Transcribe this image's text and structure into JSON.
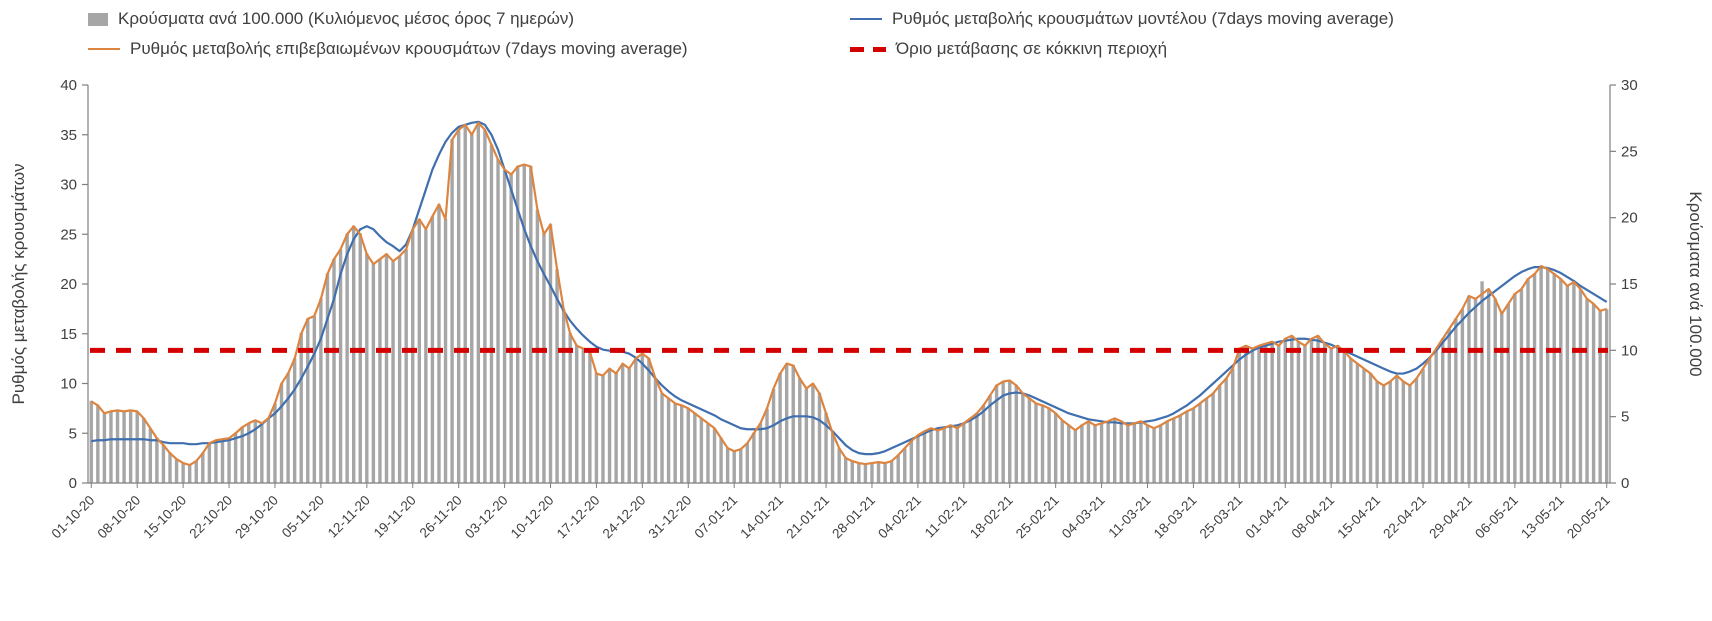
{
  "legend": {
    "items": [
      {
        "label": "Κρούσματα ανά 100.000 (Κυλιόμενος μέσος όρος 7 ημερών)",
        "marker": "bar",
        "color": "#a6a6a6"
      },
      {
        "label": "Ρυθμός μεταβολής κρουσμάτων μοντέλου (7days moving average)",
        "marker": "line",
        "color": "#3f6fae"
      },
      {
        "label": "Ρυθμός μεταβολής επιβεβαιωμένων κρουσμάτων (7days moving average)",
        "marker": "line",
        "color": "#dd8540"
      },
      {
        "label": "Όριο μετάβασης σε κόκκινη περιοχή",
        "marker": "dash",
        "color": "#d40000"
      }
    ]
  },
  "axes": {
    "left_title": "Ρυθμός μεταβολής κρουσμάτων",
    "right_title": "Κρούσματα ανά 100.000",
    "left_ticks": [
      0,
      5,
      10,
      15,
      20,
      25,
      30,
      35,
      40
    ],
    "right_ticks": [
      0,
      5,
      10,
      15,
      20,
      25,
      30
    ]
  },
  "chart_data": {
    "type": "bar",
    "title": "",
    "x_tick_interval_days": 7,
    "x_tick_labels": [
      "01-10-20",
      "08-10-20",
      "15-10-20",
      "22-10-20",
      "29-10-20",
      "05-11-20",
      "12-11-20",
      "19-11-20",
      "26-11-20",
      "03-12-20",
      "10-12-20",
      "17-12-20",
      "24-12-20",
      "31-12-20",
      "07-01-21",
      "14-01-21",
      "21-01-21",
      "28-01-21",
      "04-02-21",
      "11-02-21",
      "18-02-21",
      "25-02-21",
      "04-03-21",
      "11-03-21",
      "18-03-21",
      "25-03-21",
      "01-04-21",
      "08-04-21",
      "15-04-21",
      "22-04-21",
      "29-04-21",
      "06-05-21",
      "13-05-21",
      "20-05-21"
    ],
    "left_axis": {
      "label": "Ρυθμός μεταβολής κρουσμάτων",
      "range": [
        0,
        40
      ]
    },
    "right_axis": {
      "label": "Κρούσματα ανά 100.000",
      "range": [
        0,
        30
      ]
    },
    "series": [
      {
        "name": "Κρούσματα ανά 100.000 (Κυλιόμενος μέσος όρος 7 ημερών)",
        "type": "bar",
        "axis": "right",
        "color": "#a6a6a6",
        "values": [
          6.2,
          5.9,
          5.3,
          5.4,
          5.5,
          5.4,
          5.5,
          5.4,
          4.9,
          4.1,
          3.4,
          2.9,
          2.3,
          1.8,
          1.5,
          1.4,
          1.7,
          2.3,
          3.0,
          3.2,
          3.3,
          3.4,
          3.8,
          4.2,
          4.5,
          4.7,
          4.5,
          4.9,
          6.0,
          7.5,
          8.3,
          9.4,
          11.3,
          12.4,
          12.6,
          13.9,
          15.8,
          16.9,
          17.6,
          18.8,
          19.4,
          18.8,
          17.3,
          16.5,
          16.9,
          17.3,
          16.7,
          17.1,
          17.6,
          19.1,
          19.9,
          19.1,
          20.1,
          21.0,
          19.9,
          25.9,
          26.6,
          27.0,
          26.3,
          27.2,
          26.6,
          25.5,
          24.4,
          23.6,
          23.3,
          23.9,
          24.0,
          23.9,
          20.6,
          18.8,
          19.5,
          16.1,
          13.1,
          11.3,
          10.4,
          10.1,
          9.9,
          8.3,
          8.1,
          8.6,
          8.3,
          9.0,
          8.6,
          9.4,
          9.8,
          9.4,
          7.9,
          6.8,
          6.4,
          6.0,
          5.9,
          5.6,
          5.3,
          4.9,
          4.5,
          4.1,
          3.4,
          2.6,
          2.4,
          2.6,
          3.0,
          3.8,
          4.5,
          5.6,
          7.1,
          8.3,
          9.0,
          8.9,
          7.9,
          7.1,
          7.5,
          6.8,
          5.3,
          3.8,
          2.6,
          1.9,
          1.7,
          1.5,
          1.4,
          1.5,
          1.6,
          1.5,
          1.7,
          2.1,
          2.6,
          3.2,
          3.6,
          3.9,
          4.1,
          4.0,
          4.1,
          4.4,
          4.1,
          4.5,
          4.9,
          5.3,
          5.9,
          6.6,
          7.4,
          7.7,
          7.7,
          7.4,
          6.8,
          6.4,
          6.0,
          5.9,
          5.6,
          5.3,
          4.7,
          4.4,
          4.0,
          4.4,
          4.7,
          4.4,
          4.5,
          4.7,
          4.9,
          4.7,
          4.4,
          4.5,
          4.7,
          4.4,
          4.1,
          4.4,
          4.7,
          4.9,
          5.1,
          5.4,
          5.6,
          6.0,
          6.4,
          6.8,
          7.4,
          7.9,
          8.6,
          10.1,
          10.4,
          10.1,
          10.4,
          10.5,
          10.7,
          10.4,
          10.9,
          11.1,
          10.7,
          10.4,
          10.9,
          11.1,
          10.5,
          10.1,
          10.4,
          9.9,
          9.4,
          9.0,
          8.6,
          8.3,
          7.7,
          7.4,
          7.7,
          8.1,
          7.7,
          7.4,
          7.9,
          8.6,
          9.4,
          10.1,
          10.9,
          11.6,
          12.4,
          13.1,
          14.1,
          13.9,
          15.2,
          14.6,
          13.9,
          12.8,
          13.5,
          14.3,
          14.6,
          15.4,
          15.8,
          16.4,
          16.1,
          15.8,
          15.4,
          14.9,
          15.2,
          14.6,
          13.9,
          13.5,
          13.0,
          13.1
        ]
      },
      {
        "name": "Ρυθμός μεταβολής κρουσμάτων μοντέλου (7days moving average)",
        "type": "line",
        "axis": "left",
        "color": "#3f6fae",
        "values": [
          4.2,
          4.3,
          4.3,
          4.4,
          4.4,
          4.4,
          4.4,
          4.4,
          4.4,
          4.3,
          4.3,
          4.1,
          4.0,
          4.0,
          4.0,
          3.9,
          3.9,
          4.0,
          4.0,
          4.1,
          4.2,
          4.3,
          4.5,
          4.7,
          5.0,
          5.4,
          5.9,
          6.5,
          7.0,
          7.7,
          8.5,
          9.4,
          10.5,
          11.7,
          13.0,
          14.5,
          16.5,
          18.5,
          21.0,
          23.0,
          24.5,
          25.5,
          25.8,
          25.5,
          24.8,
          24.2,
          23.8,
          23.3,
          24.0,
          25.5,
          27.5,
          29.5,
          31.5,
          33.0,
          34.3,
          35.2,
          35.8,
          36.0,
          36.2,
          36.3,
          36.0,
          35.0,
          33.5,
          31.5,
          29.5,
          27.5,
          25.5,
          23.8,
          22.3,
          21.0,
          19.8,
          18.5,
          17.3,
          16.3,
          15.5,
          14.8,
          14.2,
          13.7,
          13.4,
          13.3,
          13.2,
          13.2,
          13.0,
          12.6,
          12.0,
          11.3,
          10.5,
          9.8,
          9.2,
          8.7,
          8.3,
          8.0,
          7.7,
          7.4,
          7.1,
          6.8,
          6.4,
          6.1,
          5.8,
          5.5,
          5.4,
          5.4,
          5.4,
          5.5,
          5.8,
          6.2,
          6.5,
          6.7,
          6.7,
          6.7,
          6.6,
          6.3,
          5.8,
          5.2,
          4.5,
          3.8,
          3.3,
          3.0,
          2.9,
          2.9,
          3.0,
          3.2,
          3.5,
          3.8,
          4.1,
          4.4,
          4.7,
          5.0,
          5.3,
          5.5,
          5.6,
          5.7,
          5.8,
          6.0,
          6.3,
          6.7,
          7.2,
          7.8,
          8.3,
          8.8,
          9.0,
          9.1,
          9.0,
          8.8,
          8.5,
          8.2,
          7.9,
          7.6,
          7.3,
          7.0,
          6.8,
          6.6,
          6.4,
          6.3,
          6.2,
          6.1,
          6.1,
          6.0,
          6.0,
          6.0,
          6.1,
          6.2,
          6.3,
          6.5,
          6.7,
          7.0,
          7.4,
          7.8,
          8.3,
          8.8,
          9.4,
          10.0,
          10.6,
          11.2,
          11.8,
          12.4,
          12.9,
          13.3,
          13.6,
          13.8,
          14.0,
          14.2,
          14.3,
          14.4,
          14.5,
          14.5,
          14.4,
          14.3,
          14.1,
          13.9,
          13.6,
          13.3,
          13.0,
          12.7,
          12.4,
          12.1,
          11.8,
          11.5,
          11.2,
          11.0,
          11.0,
          11.2,
          11.5,
          12.0,
          12.6,
          13.3,
          14.1,
          14.9,
          15.7,
          16.4,
          17.1,
          17.7,
          18.3,
          18.8,
          19.3,
          19.8,
          20.3,
          20.8,
          21.2,
          21.5,
          21.7,
          21.7,
          21.6,
          21.4,
          21.1,
          20.7,
          20.3,
          19.8,
          19.4,
          19.0,
          18.6,
          18.2
        ]
      },
      {
        "name": "Ρυθμός μεταβολής επιβεβαιωμένων κρουσμάτων (7days moving average)",
        "type": "line",
        "axis": "left",
        "color": "#dd8540",
        "values": [
          8.2,
          7.8,
          7.0,
          7.2,
          7.3,
          7.2,
          7.3,
          7.2,
          6.5,
          5.5,
          4.5,
          3.8,
          3.0,
          2.4,
          2.0,
          1.8,
          2.2,
          3.0,
          4.0,
          4.3,
          4.4,
          4.5,
          5.0,
          5.6,
          6.0,
          6.3,
          6.0,
          6.5,
          8.0,
          10.0,
          11.0,
          12.5,
          15.0,
          16.5,
          16.8,
          18.5,
          21.0,
          22.5,
          23.5,
          25.0,
          25.8,
          25.0,
          23.0,
          22.0,
          22.5,
          23.0,
          22.3,
          22.8,
          23.5,
          25.5,
          26.5,
          25.5,
          26.8,
          28.0,
          26.5,
          34.5,
          35.5,
          36.0,
          35.0,
          36.2,
          35.5,
          34.0,
          32.5,
          31.5,
          31.0,
          31.8,
          32.0,
          31.8,
          27.5,
          25.0,
          26.0,
          21.5,
          17.5,
          15.0,
          13.8,
          13.5,
          13.2,
          11.0,
          10.8,
          11.5,
          11.0,
          12.0,
          11.5,
          12.5,
          13.0,
          12.5,
          10.5,
          9.0,
          8.5,
          8.0,
          7.8,
          7.5,
          7.0,
          6.5,
          6.0,
          5.5,
          4.5,
          3.5,
          3.2,
          3.4,
          4.0,
          5.0,
          6.0,
          7.5,
          9.5,
          11.0,
          12.0,
          11.8,
          10.5,
          9.5,
          10.0,
          9.0,
          7.0,
          5.0,
          3.5,
          2.5,
          2.2,
          2.0,
          1.9,
          2.0,
          2.1,
          2.0,
          2.2,
          2.8,
          3.5,
          4.2,
          4.8,
          5.2,
          5.5,
          5.3,
          5.5,
          5.8,
          5.5,
          6.0,
          6.5,
          7.0,
          7.8,
          8.8,
          9.8,
          10.2,
          10.3,
          9.8,
          9.0,
          8.5,
          8.0,
          7.8,
          7.5,
          7.0,
          6.3,
          5.8,
          5.3,
          5.8,
          6.2,
          5.8,
          6.0,
          6.2,
          6.5,
          6.2,
          5.8,
          6.0,
          6.2,
          5.8,
          5.5,
          5.8,
          6.2,
          6.5,
          6.8,
          7.2,
          7.5,
          8.0,
          8.5,
          9.0,
          9.8,
          10.5,
          11.5,
          13.5,
          13.8,
          13.5,
          13.8,
          14.0,
          14.2,
          13.8,
          14.5,
          14.8,
          14.2,
          13.8,
          14.5,
          14.8,
          14.0,
          13.5,
          13.8,
          13.2,
          12.5,
          12.0,
          11.5,
          11.0,
          10.2,
          9.8,
          10.2,
          10.8,
          10.2,
          9.8,
          10.5,
          11.5,
          12.5,
          13.5,
          14.5,
          15.5,
          16.5,
          17.5,
          18.8,
          18.5,
          19.0,
          19.5,
          18.5,
          17.0,
          18.0,
          19.0,
          19.5,
          20.5,
          21.0,
          21.8,
          21.5,
          21.0,
          20.5,
          19.8,
          20.2,
          19.5,
          18.5,
          18.0,
          17.3,
          17.5
        ]
      }
    ],
    "threshold": {
      "name": "Όριο μετάβασης σε κόκκινη περιοχή",
      "axis": "right",
      "value": 10,
      "color": "#d40000",
      "style": "dashed"
    }
  }
}
